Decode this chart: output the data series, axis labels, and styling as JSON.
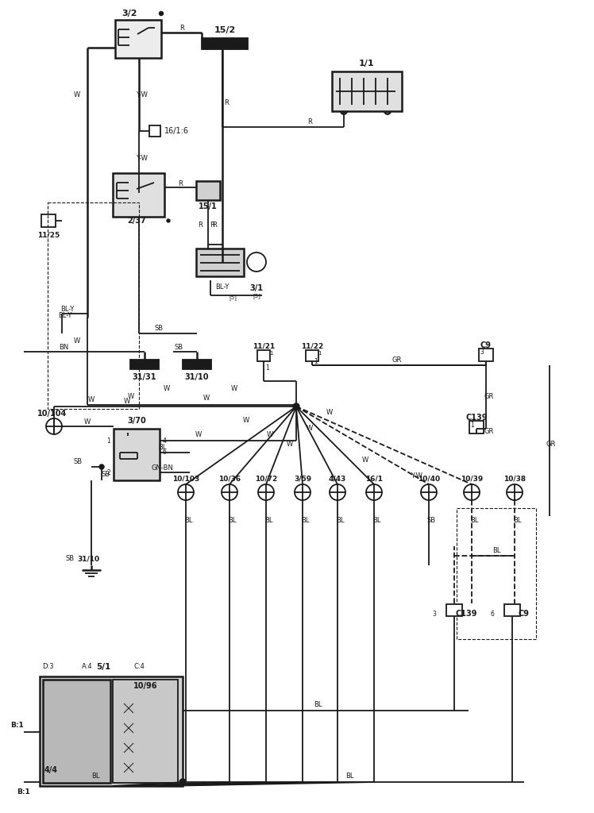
{
  "bg_color": "#ffffff",
  "line_color": "#1a1a1a",
  "lw": 1.3,
  "lw2": 1.8,
  "components": {
    "3_2_label": "3/2",
    "15_2_label": "15/2",
    "1_1_label": "1/1",
    "16_1_6_label": "16/1:6",
    "2_37_label": "2/37",
    "15_1_label": "15/1",
    "3_1_label": "3/1",
    "11_25_label": "11/25",
    "31_31_label": "31/31",
    "31_10_top_label": "31/10",
    "11_21_label": "11/21",
    "11_22_label": "11/22",
    "C9_top_label": "C9",
    "C9_top_num": "3",
    "10_104_label": "10/104",
    "3_70_label": "3/70",
    "C139_top_label": "C139",
    "C139_top_num": "1",
    "10_103_label": "10/103",
    "10_36_label": "10/36",
    "10_72_label": "10/72",
    "3_59_label": "3/59",
    "4_43_label": "4/43",
    "16_1_label": "16/1",
    "10_40_label": "10/40",
    "10_39_label": "10/39",
    "10_38_label": "10/38",
    "31_10_bot_label": "31/10",
    "5_1_label": "5/1",
    "4_4_label": "4/4",
    "10_96_label": "10/96",
    "C139_bot_label": "C139",
    "C139_bot_num": "3",
    "C9_bot_label": "C9",
    "C9_bot_num": "6",
    "B1_label": "B:1",
    "D3_label": "D:3",
    "A4_label": "A:4",
    "C4_label": "C:4"
  }
}
